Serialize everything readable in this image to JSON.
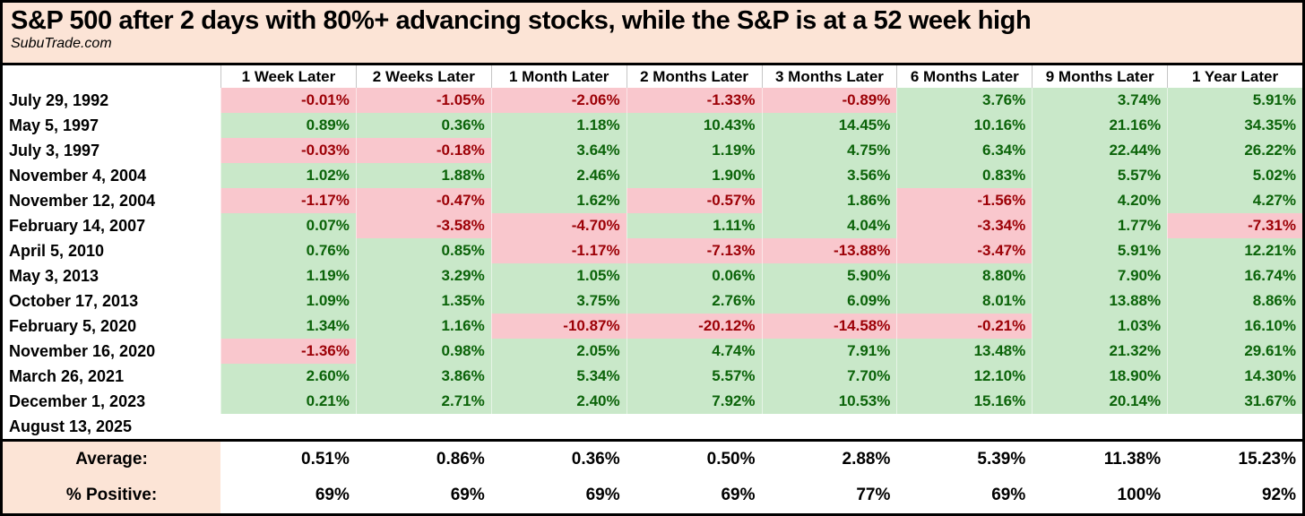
{
  "source": "SubuTrade.com",
  "colors": {
    "header_bg": "#fce4d6",
    "positive_bg": "#c9e8c9",
    "positive_text": "#0b6309",
    "negative_bg": "#f9c7cd",
    "negative_text": "#9c0006",
    "border": "#000000",
    "header_divider": "#c6c6c6"
  },
  "chart_data": {
    "type": "table",
    "title": "S&P 500 after 2 days with 80%+ advancing stocks, while the S&P is at a 52 week high",
    "columns": [
      "1 Week Later",
      "2 Weeks Later",
      "1 Month Later",
      "2 Months Later",
      "3 Months Later",
      "6 Months Later",
      "9 Months Later",
      "1 Year Later"
    ],
    "rows": [
      {
        "date": "July 29, 1992",
        "values": [
          "-0.01%",
          "-1.05%",
          "-2.06%",
          "-1.33%",
          "-0.89%",
          "3.76%",
          "3.74%",
          "5.91%"
        ]
      },
      {
        "date": "May 5, 1997",
        "values": [
          "0.89%",
          "0.36%",
          "1.18%",
          "10.43%",
          "14.45%",
          "10.16%",
          "21.16%",
          "34.35%"
        ]
      },
      {
        "date": "July 3, 1997",
        "values": [
          "-0.03%",
          "-0.18%",
          "3.64%",
          "1.19%",
          "4.75%",
          "6.34%",
          "22.44%",
          "26.22%"
        ]
      },
      {
        "date": "November 4, 2004",
        "values": [
          "1.02%",
          "1.88%",
          "2.46%",
          "1.90%",
          "3.56%",
          "0.83%",
          "5.57%",
          "5.02%"
        ]
      },
      {
        "date": "November 12, 2004",
        "values": [
          "-1.17%",
          "-0.47%",
          "1.62%",
          "-0.57%",
          "1.86%",
          "-1.56%",
          "4.20%",
          "4.27%"
        ]
      },
      {
        "date": "February 14, 2007",
        "values": [
          "0.07%",
          "-3.58%",
          "-4.70%",
          "1.11%",
          "4.04%",
          "-3.34%",
          "1.77%",
          "-7.31%"
        ]
      },
      {
        "date": "April 5, 2010",
        "values": [
          "0.76%",
          "0.85%",
          "-1.17%",
          "-7.13%",
          "-13.88%",
          "-3.47%",
          "5.91%",
          "12.21%"
        ]
      },
      {
        "date": "May 3, 2013",
        "values": [
          "1.19%",
          "3.29%",
          "1.05%",
          "0.06%",
          "5.90%",
          "8.80%",
          "7.90%",
          "16.74%"
        ]
      },
      {
        "date": "October 17, 2013",
        "values": [
          "1.09%",
          "1.35%",
          "3.75%",
          "2.76%",
          "6.09%",
          "8.01%",
          "13.88%",
          "8.86%"
        ]
      },
      {
        "date": "February 5, 2020",
        "values": [
          "1.34%",
          "1.16%",
          "-10.87%",
          "-20.12%",
          "-14.58%",
          "-0.21%",
          "1.03%",
          "16.10%"
        ]
      },
      {
        "date": "November 16, 2020",
        "values": [
          "-1.36%",
          "0.98%",
          "2.05%",
          "4.74%",
          "7.91%",
          "13.48%",
          "21.32%",
          "29.61%"
        ]
      },
      {
        "date": "March 26, 2021",
        "values": [
          "2.60%",
          "3.86%",
          "5.34%",
          "5.57%",
          "7.70%",
          "12.10%",
          "18.90%",
          "14.30%"
        ]
      },
      {
        "date": "December 1, 2023",
        "values": [
          "0.21%",
          "2.71%",
          "2.40%",
          "7.92%",
          "10.53%",
          "15.16%",
          "20.14%",
          "31.67%"
        ]
      },
      {
        "date": "August 13, 2025",
        "values": [
          "",
          "",
          "",
          "",
          "",
          "",
          "",
          ""
        ]
      }
    ],
    "summary": [
      {
        "label": "Average:",
        "values": [
          "0.51%",
          "0.86%",
          "0.36%",
          "0.50%",
          "2.88%",
          "5.39%",
          "11.38%",
          "15.23%"
        ]
      },
      {
        "label": "% Positive:",
        "values": [
          "69%",
          "69%",
          "69%",
          "69%",
          "77%",
          "69%",
          "100%",
          "92%"
        ]
      }
    ]
  }
}
